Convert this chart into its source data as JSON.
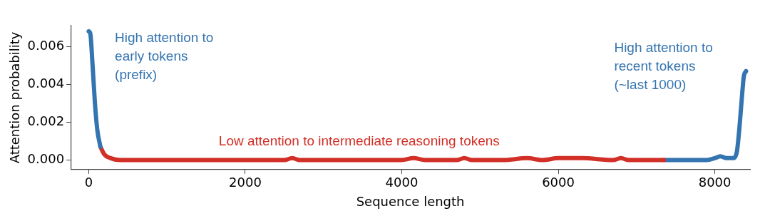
{
  "chart_data": {
    "type": "line",
    "xlabel": "Sequence length",
    "ylabel": "Attention probability",
    "xlim": [
      -230,
      8450
    ],
    "xticks": [
      0,
      2000,
      4000,
      6000,
      8000
    ],
    "ylim": [
      -0.0005,
      0.0071
    ],
    "yticks": [
      {
        "value": 0,
        "label": "0.000"
      },
      {
        "value": 0.002,
        "label": "0.002"
      },
      {
        "value": 0.004,
        "label": "0.004"
      },
      {
        "value": 0.006,
        "label": "0.006"
      }
    ],
    "grid": false,
    "legend": false,
    "marker": "none",
    "line_style": "solid",
    "series": [
      {
        "color": "#3474b0",
        "x": [
          0,
          20,
          50,
          80,
          110,
          150
        ],
        "values": [
          0.0068,
          0.0067,
          0.005,
          0.003,
          0.0016,
          0.0007
        ]
      },
      {
        "color": "#d22f26",
        "x": [
          150,
          200,
          280,
          400,
          1000,
          1600,
          2000,
          2500,
          2600,
          2700,
          2900,
          3500,
          4000,
          4150,
          4300,
          4700,
          4800,
          4900,
          5300,
          5600,
          5800,
          6000,
          6300,
          6700,
          6800,
          6900,
          7350
        ],
        "values": [
          0.0007,
          0.0003,
          0.0001,
          0,
          0,
          0,
          0,
          0,
          0.0001,
          0,
          0,
          0,
          0,
          0.0001,
          0,
          0,
          0.0001,
          0,
          0,
          0.0001,
          0,
          0.0001,
          0.0001,
          0,
          0.0001,
          0,
          0
        ]
      },
      {
        "color": "#3474b0",
        "x": [
          7350,
          7700,
          7900,
          8000,
          8070,
          8150,
          8230,
          8280,
          8310,
          8340,
          8370,
          8400
        ],
        "values": [
          0,
          0,
          0,
          0.0001,
          0.0002,
          0.0001,
          0.0001,
          0.0004,
          0.0015,
          0.003,
          0.0044,
          0.0047
        ]
      }
    ],
    "annotations": [
      "High attention to\nearly tokens\n(prefix)",
      "Low attention to intermediate reasoning tokens",
      "High attention to\nrecent tokens\n(~last 1000)"
    ]
  }
}
